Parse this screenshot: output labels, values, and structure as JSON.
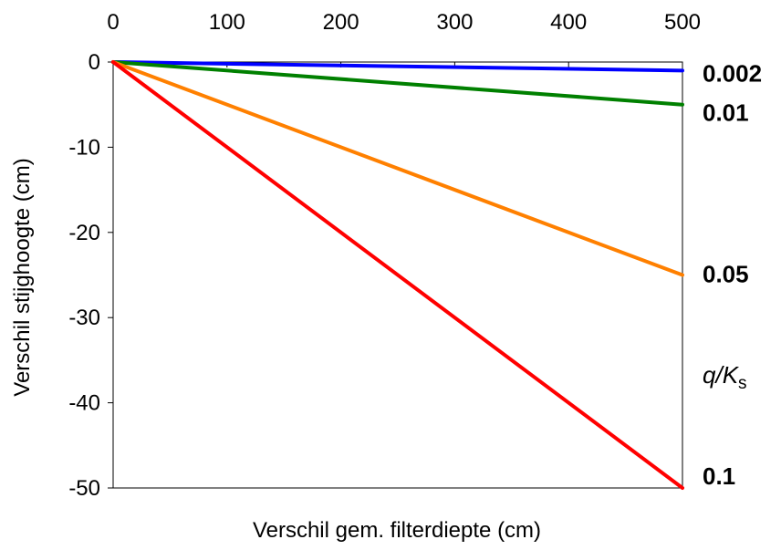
{
  "chart_data": {
    "type": "line",
    "title": "",
    "xlabel": "Verschil gem. filterdiepte (cm)",
    "ylabel": "Verschil stijghoogte (cm)",
    "x_ticks": [
      "0",
      "100",
      "200",
      "300",
      "400",
      "500"
    ],
    "y_ticks": [
      "0",
      "-10",
      "-20",
      "-30",
      "-40",
      "-50"
    ],
    "xlim": [
      0,
      500
    ],
    "ylim": [
      -50,
      0
    ],
    "x_axis_position": "top",
    "grid": false,
    "legend": {
      "title_italic_q": "q",
      "title_slash": "/",
      "title_italic_k": "K",
      "title_sub": "s",
      "placement": "right"
    },
    "series": [
      {
        "name": "0.002",
        "color": "#0000ff",
        "x": [
          0,
          500
        ],
        "y": [
          0,
          -1
        ]
      },
      {
        "name": "0.01",
        "color": "#008000",
        "x": [
          0,
          500
        ],
        "y": [
          0,
          -5
        ]
      },
      {
        "name": "0.05",
        "color": "#ff8000",
        "x": [
          0,
          500
        ],
        "y": [
          0,
          -25
        ]
      },
      {
        "name": "0.1",
        "color": "#ff0000",
        "x": [
          0,
          500
        ],
        "y": [
          0,
          -50
        ]
      }
    ]
  }
}
